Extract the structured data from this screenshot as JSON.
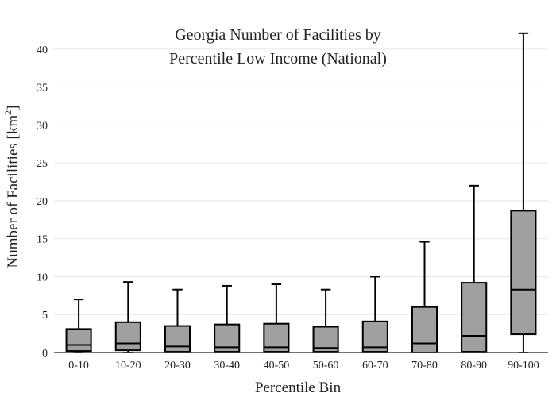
{
  "chart_data": {
    "type": "box",
    "title_line1": "Georgia Number of Facilities by",
    "title_line2": "Percentile Low Income (National)",
    "xlabel": "Percentile Bin",
    "ylabel_main": "Number of Facilities  [km",
    "ylabel_sup": "2",
    "ylabel_end": "]",
    "ylim": [
      0,
      42.5
    ],
    "yticks": [
      0,
      5,
      10,
      15,
      20,
      25,
      30,
      35,
      40
    ],
    "grid": true,
    "categories": [
      "0-10",
      "10-20",
      "20-30",
      "30-40",
      "40-50",
      "50-60",
      "60-70",
      "70-80",
      "80-90",
      "90-100"
    ],
    "boxes": [
      {
        "min": 0,
        "q1": 0.2,
        "median": 1.0,
        "q3": 3.1,
        "max": 7.0
      },
      {
        "min": 0,
        "q1": 0.3,
        "median": 1.2,
        "q3": 4.0,
        "max": 9.3
      },
      {
        "min": 0,
        "q1": 0.1,
        "median": 0.8,
        "q3": 3.5,
        "max": 8.3
      },
      {
        "min": 0,
        "q1": 0.1,
        "median": 0.7,
        "q3": 3.7,
        "max": 8.8
      },
      {
        "min": 0,
        "q1": 0.1,
        "median": 0.7,
        "q3": 3.8,
        "max": 9.0
      },
      {
        "min": 0,
        "q1": 0.1,
        "median": 0.6,
        "q3": 3.4,
        "max": 8.3
      },
      {
        "min": 0,
        "q1": 0.1,
        "median": 0.7,
        "q3": 4.1,
        "max": 10.0
      },
      {
        "min": 0,
        "q1": 0.0,
        "median": 1.2,
        "q3": 6.0,
        "max": 14.6
      },
      {
        "min": 0,
        "q1": 0.1,
        "median": 2.2,
        "q3": 9.2,
        "max": 22.0
      },
      {
        "min": 0,
        "q1": 2.4,
        "median": 8.3,
        "q3": 18.7,
        "max": 42.1
      }
    ]
  }
}
